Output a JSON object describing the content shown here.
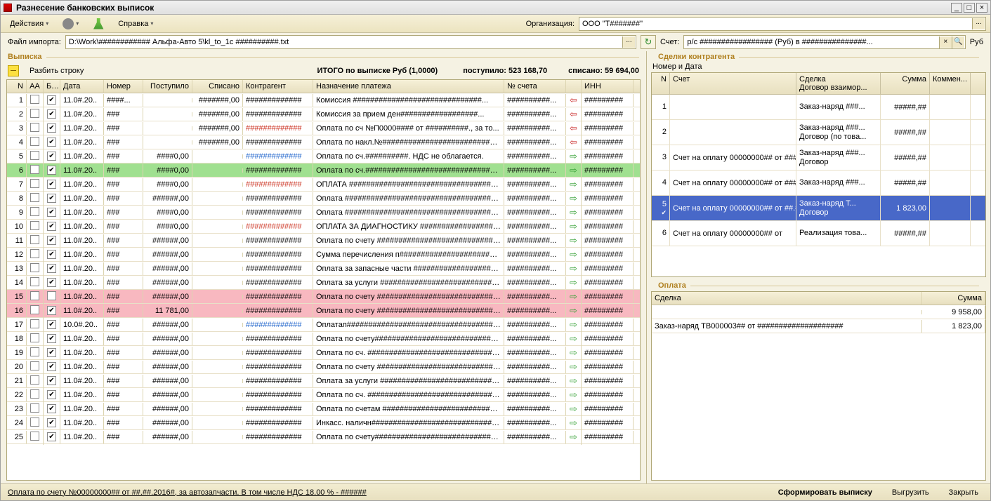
{
  "window": {
    "title": "Разнесение банковских выписок",
    "min": "_",
    "max": "□",
    "close": "×"
  },
  "toolbar": {
    "actions": "Действия",
    "help": "Справка",
    "org_label": "Организация:",
    "org_value": "ООО \"Т#######\""
  },
  "file": {
    "label": "Файл импорта:",
    "value": "D:\\Work\\############ Альфа-Авто 5\\kl_to_1c ##########.txt"
  },
  "statement": {
    "title": "Выписка",
    "split": "Разбить строку",
    "total_label": "ИТОГО по выписке Руб (1,0000)",
    "in_label": "поступило: 523 168,70",
    "out_label": "списано: 59 694,00"
  },
  "columns": {
    "n": "N",
    "aa": "АА",
    "bux": "Бух",
    "date": "Дата",
    "nom": "Номер",
    "post": "Поступило",
    "spis": "Списано",
    "kon": "Контрагент",
    "naz": "Назначение платежа",
    "acc": "№ счета",
    "inn": "ИНН"
  },
  "rows": [
    {
      "n": 1,
      "aa": false,
      "bux": true,
      "date": "11.0#.20..",
      "nom": "####...",
      "post": "",
      "spis": "#######,00",
      "kon": "#############",
      "koncolor": "black",
      "naz": "Комиссия ##############################...",
      "acc": "##########...",
      "dir": "out",
      "inn": "#########"
    },
    {
      "n": 2,
      "aa": false,
      "bux": true,
      "date": "11.0#.20..",
      "nom": "###",
      "post": "",
      "spis": "#######,00",
      "kon": "#############",
      "koncolor": "black",
      "naz": "Комиссия за прием ден##################...",
      "acc": "##########...",
      "dir": "out",
      "inn": "#########"
    },
    {
      "n": 3,
      "aa": false,
      "bux": true,
      "date": "11.0#.20..",
      "nom": "###",
      "post": "",
      "spis": "#######,00",
      "kon": "#############",
      "koncolor": "red",
      "naz": "Оплата по сч №П0000#### от ##########., за то...",
      "acc": "##########...",
      "dir": "out",
      "inn": "#########"
    },
    {
      "n": 4,
      "aa": false,
      "bux": true,
      "date": "11.0#.20..",
      "nom": "###",
      "post": "",
      "spis": "#######,00",
      "kon": "#############",
      "koncolor": "black",
      "naz": "Оплата по накл.№###########################...",
      "acc": "##########...",
      "dir": "out",
      "inn": "#########"
    },
    {
      "n": 5,
      "aa": false,
      "bux": true,
      "date": "11.0#.20..",
      "nom": "###",
      "post": "####0,00",
      "spis": "",
      "kon": "#############",
      "koncolor": "blue",
      "naz": "Оплата по сч.##########. НДС не облагается.",
      "acc": "##########...",
      "dir": "in",
      "inn": "#########"
    },
    {
      "n": 6,
      "aa": false,
      "bux": true,
      "date": "11.0#.20..",
      "nom": "###",
      "post": "####0,00",
      "spis": "",
      "kon": "#############",
      "koncolor": "black",
      "naz": "Оплата по сч.##################################",
      "acc": "##########...",
      "dir": "in",
      "inn": "#########",
      "rowstyle": "green"
    },
    {
      "n": 7,
      "aa": false,
      "bux": true,
      "date": "11.0#.20..",
      "nom": "###",
      "post": "####0,00",
      "spis": "",
      "kon": "#############",
      "koncolor": "red",
      "naz": "ОПЛАТА #######################################",
      "acc": "##########...",
      "dir": "in",
      "inn": "#########"
    },
    {
      "n": 8,
      "aa": false,
      "bux": true,
      "date": "11.0#.20..",
      "nom": "###",
      "post": "######,00",
      "spis": "",
      "kon": "#############",
      "koncolor": "black",
      "naz": "Оплата #########################################",
      "acc": "##########...",
      "dir": "in",
      "inn": "#########"
    },
    {
      "n": 9,
      "aa": false,
      "bux": true,
      "date": "11.0#.20..",
      "nom": "###",
      "post": "####0,00",
      "spis": "",
      "kon": "#############",
      "koncolor": "black",
      "naz": "Оплата #########################################",
      "acc": "##########...",
      "dir": "in",
      "inn": "#########"
    },
    {
      "n": 10,
      "aa": false,
      "bux": true,
      "date": "11.0#.20..",
      "nom": "###",
      "post": "####0,00",
      "spis": "",
      "kon": "#############",
      "koncolor": "red",
      "naz": "ОПЛАТА ЗА ДИАГНОСТИКУ #######################",
      "acc": "##########...",
      "dir": "in",
      "inn": "#########"
    },
    {
      "n": 11,
      "aa": false,
      "bux": true,
      "date": "11.0#.20..",
      "nom": "###",
      "post": "######,00",
      "spis": "",
      "kon": "#############",
      "koncolor": "black",
      "naz": "Оплата по счету ################################",
      "acc": "##########...",
      "dir": "in",
      "inn": "#########"
    },
    {
      "n": 12,
      "aa": false,
      "bux": true,
      "date": "11.0#.20..",
      "nom": "###",
      "post": "######,00",
      "spis": "",
      "kon": "#############",
      "koncolor": "black",
      "naz": "Сумма перечисления п#########################",
      "acc": "##########...",
      "dir": "in",
      "inn": "#########"
    },
    {
      "n": 13,
      "aa": false,
      "bux": true,
      "date": "11.0#.20..",
      "nom": "###",
      "post": "######,00",
      "spis": "",
      "kon": "#############",
      "koncolor": "black",
      "naz": "Оплата за запасные части ######################",
      "acc": "##########...",
      "dir": "in",
      "inn": "#########"
    },
    {
      "n": 14,
      "aa": false,
      "bux": true,
      "date": "11.0#.20..",
      "nom": "###",
      "post": "######,00",
      "spis": "",
      "kon": "#############",
      "koncolor": "black",
      "naz": "Оплата за услуги ##############################",
      "acc": "##########...",
      "dir": "in",
      "inn": "#########"
    },
    {
      "n": 15,
      "aa": false,
      "bux": false,
      "date": "11.0#.20..",
      "nom": "###",
      "post": "######,00",
      "spis": "",
      "kon": "#############",
      "koncolor": "black",
      "naz": "Оплата по счету ################################",
      "acc": "##########...",
      "dir": "in",
      "inn": "#########",
      "rowstyle": "pink"
    },
    {
      "n": 16,
      "aa": false,
      "bux": true,
      "date": "11.0#.20..",
      "nom": "###",
      "post": "11 781,00",
      "spis": "",
      "kon": "#############",
      "koncolor": "black",
      "naz": "Оплата по счету ################################",
      "acc": "##########...",
      "dir": "in",
      "inn": "#########",
      "rowstyle": "pink"
    },
    {
      "n": 17,
      "aa": false,
      "bux": true,
      "date": "10.0#.20..",
      "nom": "###",
      "post": "######,00",
      "spis": "",
      "kon": "#############",
      "koncolor": "blue",
      "naz": "Оплатап######################################...",
      "acc": "##########...",
      "dir": "in",
      "inn": "#########"
    },
    {
      "n": 18,
      "aa": false,
      "bux": true,
      "date": "11.0#.20..",
      "nom": "###",
      "post": "######,00",
      "spis": "",
      "kon": "#############",
      "koncolor": "black",
      "naz": "Оплата по счету################################",
      "acc": "##########...",
      "dir": "in",
      "inn": "#########"
    },
    {
      "n": 19,
      "aa": false,
      "bux": true,
      "date": "11.0#.20..",
      "nom": "###",
      "post": "######,00",
      "spis": "",
      "kon": "#############",
      "koncolor": "black",
      "naz": "Оплата по сч. ##################################",
      "acc": "##########...",
      "dir": "in",
      "inn": "#########"
    },
    {
      "n": 20,
      "aa": false,
      "bux": true,
      "date": "11.0#.20..",
      "nom": "###",
      "post": "######,00",
      "spis": "",
      "kon": "#############",
      "koncolor": "black",
      "naz": "Оплата по счету ################################",
      "acc": "##########...",
      "dir": "in",
      "inn": "#########"
    },
    {
      "n": 21,
      "aa": false,
      "bux": true,
      "date": "11.0#.20..",
      "nom": "###",
      "post": "######,00",
      "spis": "",
      "kon": "#############",
      "koncolor": "black",
      "naz": "Оплата за услуги ##############################",
      "acc": "##########...",
      "dir": "in",
      "inn": "#########"
    },
    {
      "n": 22,
      "aa": false,
      "bux": true,
      "date": "11.0#.20..",
      "nom": "###",
      "post": "######,00",
      "spis": "",
      "kon": "#############",
      "koncolor": "black",
      "naz": "Оплата по сч. ##################################",
      "acc": "##########...",
      "dir": "in",
      "inn": "#########"
    },
    {
      "n": 23,
      "aa": false,
      "bux": true,
      "date": "11.0#.20..",
      "nom": "###",
      "post": "######,00",
      "spis": "",
      "kon": "#############",
      "koncolor": "black",
      "naz": "Оплата по счетам ##############################",
      "acc": "##########...",
      "dir": "in",
      "inn": "#########"
    },
    {
      "n": 24,
      "aa": false,
      "bux": true,
      "date": "11.0#.20..",
      "nom": "###",
      "post": "######,00",
      "spis": "",
      "kon": "#############",
      "koncolor": "black",
      "naz": "Инкасс. наличн#################################",
      "acc": "##########...",
      "dir": "in",
      "inn": "#########"
    },
    {
      "n": 25,
      "aa": false,
      "bux": true,
      "date": "11.0#.20..",
      "nom": "###",
      "post": "######,00",
      "spis": "",
      "kon": "#############",
      "koncolor": "black",
      "naz": "Оплата по счету################################",
      "acc": "##########...",
      "dir": "in",
      "inn": "#########"
    }
  ],
  "right": {
    "account_label": "Счет:",
    "account_value": "р/с ################# (Руб) в ###############...",
    "account_after": "Руб",
    "deals_title": "Сделки контрагента",
    "deals_sub": "Номер и Дата",
    "deals_cols": {
      "n": "N",
      "acc": "Счет",
      "deal": "Сделка",
      "deal_sub": "Договор взаимор...",
      "sum": "Сумма",
      "kom": "Коммен..."
    },
    "deals": [
      {
        "n": 1,
        "acc": "",
        "deal1": "Заказ-наряд ###...",
        "deal2": "",
        "sum": "#####,##",
        "sel": false
      },
      {
        "n": 2,
        "acc": "",
        "deal1": "Заказ-наряд ###...",
        "deal2": "Договор (по това...",
        "sum": "#####,##",
        "sel": false
      },
      {
        "n": 3,
        "acc": "Счет на оплату 00000000## от ################",
        "deal1": "Заказ-наряд ###...",
        "deal2": "Договор",
        "sum": "#####,##",
        "sel": false
      },
      {
        "n": 4,
        "acc": "Счет на оплату 00000000## от ################",
        "deal1": "Заказ-наряд ###...",
        "deal2": "",
        "sum": "#####,##",
        "sel": false
      },
      {
        "n": 5,
        "acc": "Счет на оплату 00000000## от ##.##.####",
        "deal1": "Заказ-наряд Т...",
        "deal2": "Договор",
        "sum": "1 823,00",
        "sel": true
      },
      {
        "n": 6,
        "acc": "Счет на оплату 00000000## от",
        "deal1": "Реализация това...",
        "deal2": "",
        "sum": "#####,##",
        "sel": false
      }
    ],
    "pay_title": "Оплата",
    "pay_cols": {
      "deal": "Сделка",
      "sum": "Сумма"
    },
    "pays": [
      {
        "deal": "",
        "sum": "9 958,00"
      },
      {
        "deal": "Заказ-наряд ТВ000003## от ####################",
        "sum": "1 823,00"
      }
    ]
  },
  "status": {
    "text": "Оплата по счету №00000000## от ##.##.2016#, за автозапчасти. В том числе НДС 18.00 % - ######",
    "gen": "Сформировать выписку",
    "upload": "Выгрузить",
    "close": "Закрыть"
  },
  "colors": {
    "green_row": "#a0e090",
    "pink_row": "#f8b8c0",
    "sel_blue": "#4868c8",
    "kon_red": "#cc3322",
    "kon_blue": "#2266cc",
    "arrow_in": "#33a033",
    "arrow_out": "#cc3333"
  }
}
